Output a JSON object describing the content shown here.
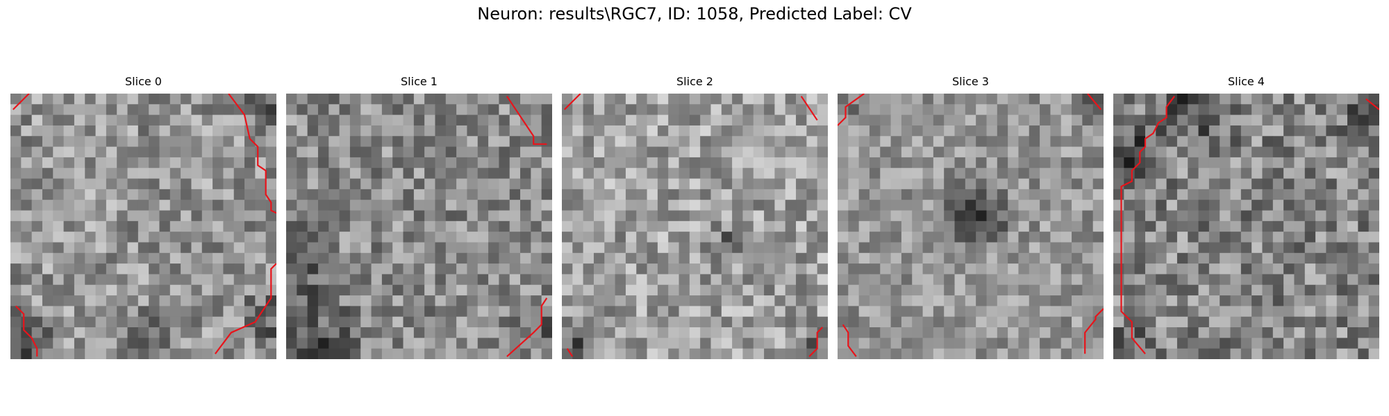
{
  "figure": {
    "title": "Neuron: results\\RGC7, ID: 1058, Predicted Label: CV"
  },
  "chart_data": {
    "type": "heatmap",
    "colormap": "grayscale",
    "contour_color": "#e8141b",
    "grid_size": 25,
    "axes_visible": false,
    "panels": [
      {
        "title": "Slice 0",
        "seed": 101,
        "base": 150,
        "noise": 55,
        "darkspots": [
          {
            "cx": 0.04,
            "cy": 0.95,
            "r": 0.18,
            "depth": 70
          },
          {
            "cx": 0.97,
            "cy": 0.05,
            "r": 0.12,
            "depth": 80
          },
          {
            "cx": 0.5,
            "cy": 0.97,
            "r": 0.22,
            "depth": 40
          },
          {
            "cx": 0.98,
            "cy": 0.85,
            "r": 0.15,
            "depth": 60
          }
        ]
      },
      {
        "title": "Slice 1",
        "seed": 202,
        "base": 140,
        "noise": 55,
        "darkspots": [
          {
            "cx": 0.05,
            "cy": 0.65,
            "r": 0.2,
            "depth": 60
          },
          {
            "cx": 0.1,
            "cy": 0.95,
            "r": 0.25,
            "depth": 70
          },
          {
            "cx": 0.97,
            "cy": 0.9,
            "r": 0.12,
            "depth": 40
          }
        ]
      },
      {
        "title": "Slice 2",
        "seed": 303,
        "base": 160,
        "noise": 55,
        "darkspots": [
          {
            "cx": 0.04,
            "cy": 0.95,
            "r": 0.12,
            "depth": 90
          },
          {
            "cx": 0.62,
            "cy": 0.55,
            "r": 0.09,
            "depth": 50
          },
          {
            "cx": 0.95,
            "cy": 0.95,
            "r": 0.1,
            "depth": 50
          }
        ]
      },
      {
        "title": "Slice 3",
        "seed": 404,
        "base": 150,
        "noise": 45,
        "darkspots": [
          {
            "cx": 0.52,
            "cy": 0.45,
            "r": 0.16,
            "depth": 120
          },
          {
            "cx": 0.97,
            "cy": 0.04,
            "r": 0.08,
            "depth": 90
          },
          {
            "cx": 0.03,
            "cy": 0.04,
            "r": 0.08,
            "depth": 50
          }
        ]
      },
      {
        "title": "Slice 4",
        "seed": 505,
        "base": 135,
        "noise": 60,
        "darkspots": [
          {
            "cx": 0.05,
            "cy": 0.22,
            "r": 0.15,
            "depth": 80
          },
          {
            "cx": 0.3,
            "cy": 0.04,
            "r": 0.25,
            "depth": 60
          },
          {
            "cx": 0.95,
            "cy": 0.08,
            "r": 0.12,
            "depth": 70
          },
          {
            "cx": 0.05,
            "cy": 0.95,
            "r": 0.12,
            "depth": 70
          }
        ]
      }
    ],
    "contours": [
      [
        [
          [
            0.01,
            0.06
          ],
          [
            0.07,
            0.0
          ]
        ],
        [
          [
            0.82,
            0.0
          ],
          [
            0.88,
            0.08
          ],
          [
            0.9,
            0.17
          ],
          [
            0.93,
            0.2
          ],
          [
            0.93,
            0.27
          ],
          [
            0.96,
            0.29
          ],
          [
            0.96,
            0.38
          ],
          [
            0.98,
            0.41
          ],
          [
            0.98,
            0.44
          ],
          [
            1.0,
            0.45
          ]
        ],
        [
          [
            1.0,
            0.64
          ],
          [
            0.98,
            0.66
          ],
          [
            0.98,
            0.77
          ],
          [
            0.94,
            0.83
          ],
          [
            0.92,
            0.86
          ],
          [
            0.83,
            0.9
          ],
          [
            0.77,
            0.98
          ]
        ],
        [
          [
            0.02,
            0.8
          ],
          [
            0.05,
            0.83
          ],
          [
            0.05,
            0.89
          ],
          [
            0.08,
            0.92
          ],
          [
            0.1,
            0.96
          ],
          [
            0.1,
            0.99
          ]
        ]
      ],
      [
        [
          [
            0.83,
            0.01
          ],
          [
            0.93,
            0.16
          ],
          [
            0.93,
            0.19
          ],
          [
            0.98,
            0.19
          ]
        ],
        [
          [
            0.98,
            0.77
          ],
          [
            0.96,
            0.8
          ],
          [
            0.96,
            0.87
          ],
          [
            0.93,
            0.9
          ],
          [
            0.83,
            0.99
          ]
        ]
      ],
      [
        [
          [
            0.01,
            0.06
          ],
          [
            0.07,
            0.0
          ]
        ],
        [
          [
            0.9,
            0.01
          ],
          [
            0.96,
            0.1
          ]
        ],
        [
          [
            0.02,
            0.96
          ],
          [
            0.04,
            0.99
          ]
        ],
        [
          [
            0.93,
            0.99
          ],
          [
            0.96,
            0.96
          ],
          [
            0.96,
            0.9
          ],
          [
            0.98,
            0.88
          ]
        ]
      ],
      [
        [
          [
            0.0,
            0.12
          ],
          [
            0.03,
            0.09
          ],
          [
            0.03,
            0.05
          ],
          [
            0.1,
            0.0
          ]
        ],
        [
          [
            0.94,
            0.0
          ],
          [
            0.99,
            0.06
          ]
        ],
        [
          [
            0.02,
            0.87
          ],
          [
            0.04,
            0.9
          ],
          [
            0.04,
            0.95
          ],
          [
            0.07,
            0.99
          ]
        ],
        [
          [
            0.93,
            0.98
          ],
          [
            0.93,
            0.9
          ],
          [
            0.97,
            0.85
          ],
          [
            0.97,
            0.84
          ],
          [
            1.0,
            0.81
          ]
        ]
      ],
      [
        [
          [
            0.23,
            0.01
          ],
          [
            0.2,
            0.05
          ],
          [
            0.2,
            0.09
          ],
          [
            0.17,
            0.11
          ],
          [
            0.15,
            0.15
          ],
          [
            0.12,
            0.17
          ],
          [
            0.12,
            0.2
          ],
          [
            0.1,
            0.22
          ],
          [
            0.1,
            0.26
          ],
          [
            0.07,
            0.29
          ],
          [
            0.07,
            0.33
          ],
          [
            0.03,
            0.35
          ],
          [
            0.03,
            0.82
          ],
          [
            0.07,
            0.86
          ],
          [
            0.07,
            0.92
          ],
          [
            0.12,
            0.98
          ]
        ],
        [
          [
            0.95,
            0.02
          ],
          [
            1.0,
            0.06
          ]
        ]
      ]
    ]
  }
}
